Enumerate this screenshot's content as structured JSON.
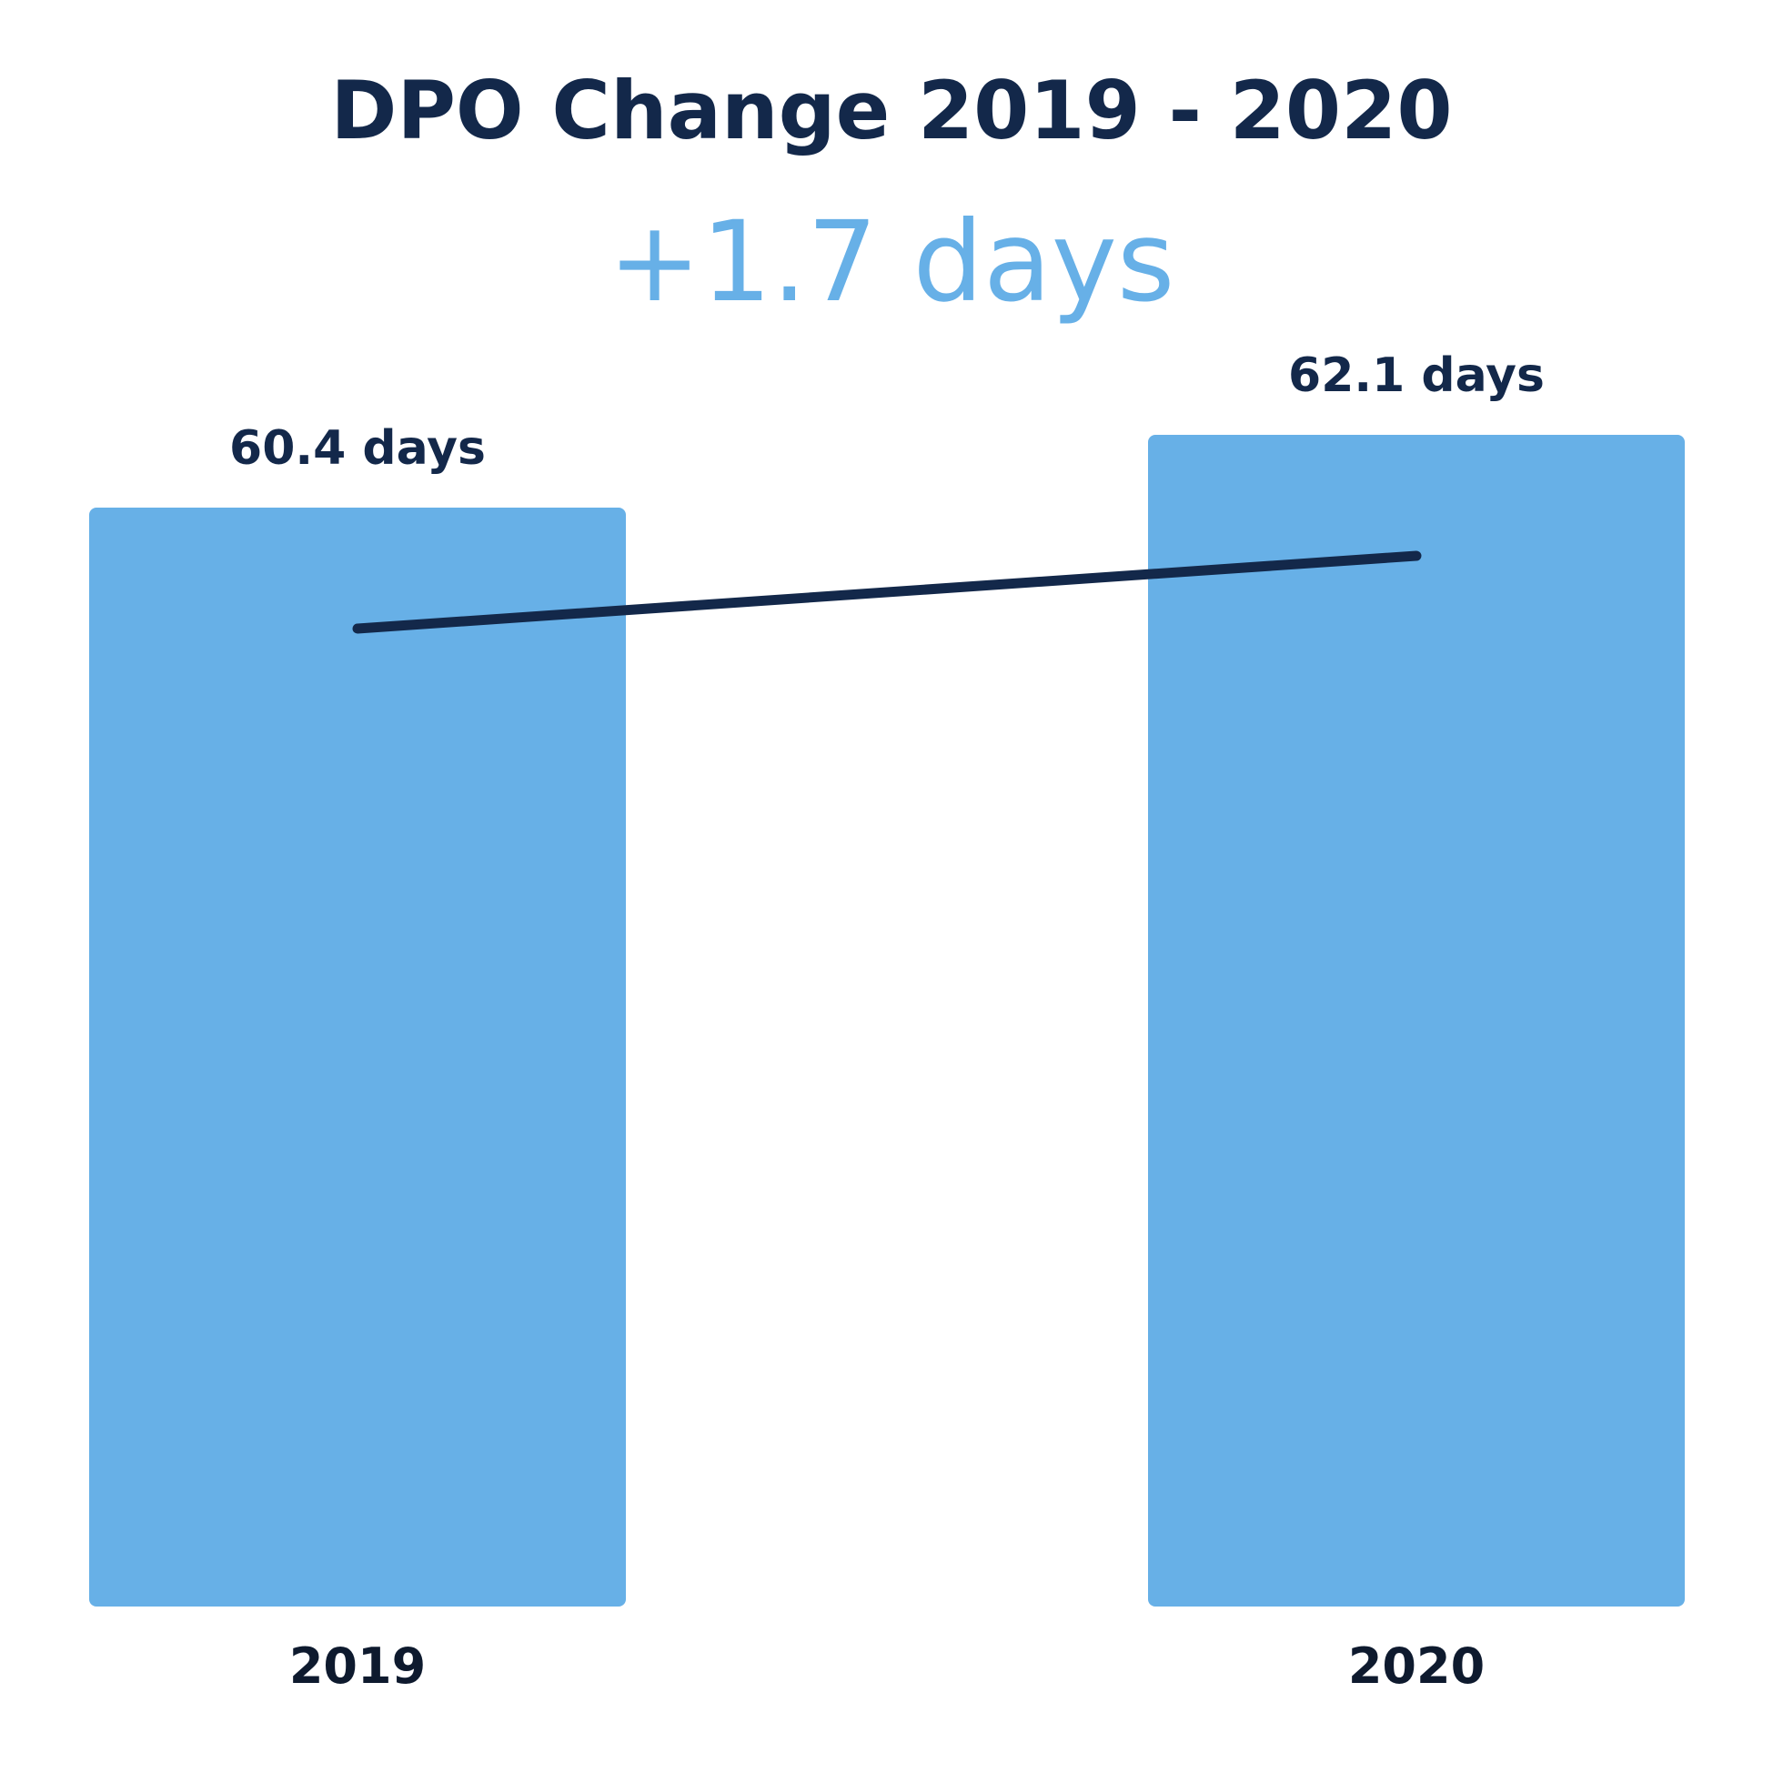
{
  "chart_data": {
    "type": "bar",
    "title": "DPO Change 2019 - 2020",
    "subtitle": "+1.7 days",
    "categories": [
      "2019",
      "2020"
    ],
    "values": [
      60.4,
      62.1
    ],
    "data_labels": [
      "60.4 days",
      "62.1 days"
    ],
    "unit": "days",
    "xlabel": "",
    "ylabel": "",
    "grid": false,
    "legend": "none",
    "overlay_line": {
      "type": "line",
      "values": [
        60.4,
        62.1
      ]
    }
  },
  "colors": {
    "bar": "#67b0e7",
    "title": "#13284a",
    "subtitle": "#67b0e7",
    "line": "#13284a",
    "labels": "#13284a",
    "ticks": "#0e1a2e",
    "background": "#ffffff"
  }
}
